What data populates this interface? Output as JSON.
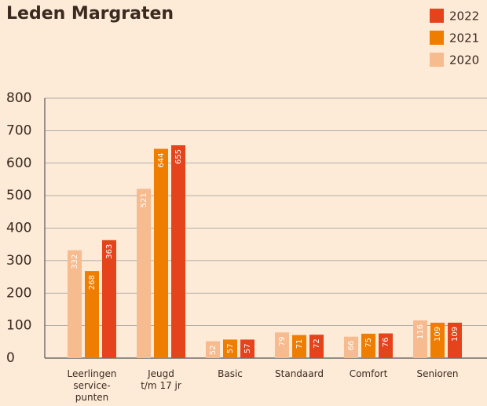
{
  "chart_data": {
    "type": "bar",
    "title": "Leden Margraten",
    "categories": [
      "Leerlingen\nservice-\npunten",
      "Jeugd\nt/m 17 jr",
      "Basic",
      "Standaard",
      "Comfort",
      "Senioren"
    ],
    "series": [
      {
        "name": "2020",
        "color": "#f7bb90",
        "values": [
          332,
          521,
          52,
          79,
          66,
          116
        ]
      },
      {
        "name": "2021",
        "color": "#ee7d00",
        "values": [
          268,
          644,
          57,
          71,
          75,
          109
        ]
      },
      {
        "name": "2022",
        "color": "#e5431c",
        "values": [
          363,
          655,
          57,
          72,
          76,
          109
        ]
      }
    ],
    "ylim": [
      0,
      800
    ],
    "yticks": [
      0,
      100,
      200,
      300,
      400,
      500,
      600,
      700,
      800
    ],
    "grid": true
  }
}
